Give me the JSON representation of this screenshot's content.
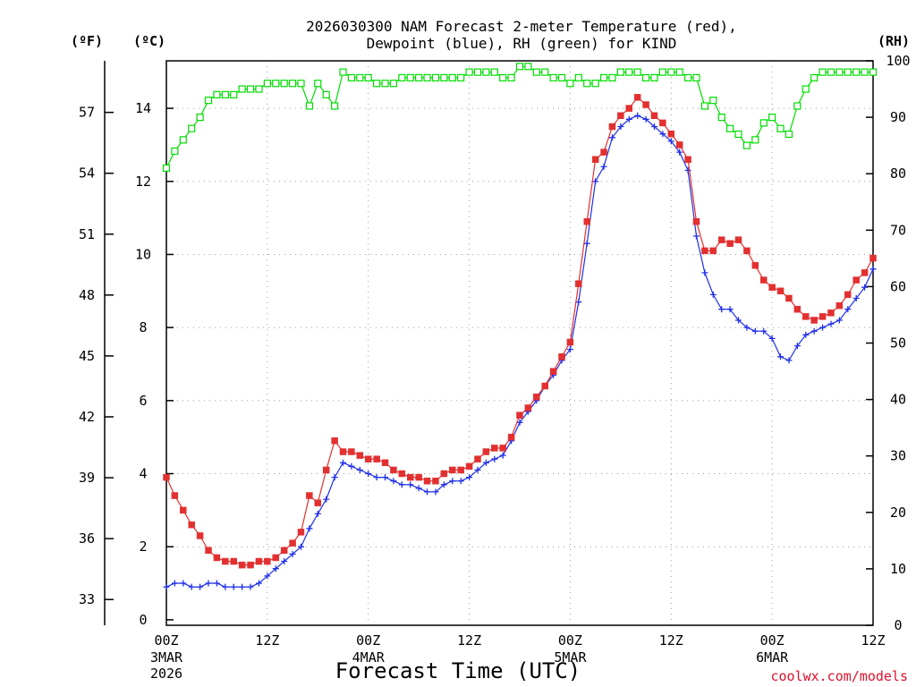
{
  "chart_data": {
    "type": "line",
    "title_line1": "2026030300 NAM Forecast 2-meter Temperature (red),",
    "title_line2": "Dewpoint (blue), RH (green) for KIND",
    "xlabel": "Forecast Time (UTC)",
    "credit": "coolwx.com/models",
    "axis_headers": {
      "fahrenheit": "(ºF)",
      "celsius": "(ºC)",
      "rh": "(RH)"
    },
    "x_ticks": [
      {
        "h": 0,
        "label": "00Z",
        "sub1": "3MAR",
        "sub2": "2026"
      },
      {
        "h": 12,
        "label": "12Z",
        "sub1": "",
        "sub2": ""
      },
      {
        "h": 24,
        "label": "00Z",
        "sub1": "4MAR",
        "sub2": ""
      },
      {
        "h": 36,
        "label": "12Z",
        "sub1": "",
        "sub2": ""
      },
      {
        "h": 48,
        "label": "00Z",
        "sub1": "5MAR",
        "sub2": ""
      },
      {
        "h": 60,
        "label": "12Z",
        "sub1": "",
        "sub2": ""
      },
      {
        "h": 72,
        "label": "00Z",
        "sub1": "6MAR",
        "sub2": ""
      },
      {
        "h": 84,
        "label": "12Z",
        "sub1": "",
        "sub2": ""
      }
    ],
    "xlim": [
      0,
      84
    ],
    "c_ylim": [
      -0.15,
      15.3
    ],
    "c_ticks": [
      "0",
      "2",
      "4",
      "6",
      "8",
      "10",
      "12",
      "14"
    ],
    "f_ticks": [
      "33",
      "36",
      "39",
      "42",
      "45",
      "48",
      "51",
      "54",
      "57"
    ],
    "rh_ylim": [
      0,
      100
    ],
    "rh_ticks": [
      "0",
      "10",
      "20",
      "30",
      "40",
      "50",
      "60",
      "70",
      "80",
      "90",
      "100"
    ],
    "colors": {
      "temperature": "#e23030",
      "dewpoint": "#2030e8",
      "rh": "#00dd00"
    },
    "hours": [
      0,
      1,
      2,
      3,
      4,
      5,
      6,
      7,
      8,
      9,
      10,
      11,
      12,
      13,
      14,
      15,
      16,
      17,
      18,
      19,
      20,
      21,
      22,
      23,
      24,
      25,
      26,
      27,
      28,
      29,
      30,
      31,
      32,
      33,
      34,
      35,
      36,
      37,
      38,
      39,
      40,
      41,
      42,
      43,
      44,
      45,
      46,
      47,
      48,
      49,
      50,
      51,
      52,
      53,
      54,
      55,
      56,
      57,
      58,
      59,
      60,
      61,
      62,
      63,
      64,
      65,
      66,
      67,
      68,
      69,
      70,
      71,
      72,
      73,
      74,
      75,
      76,
      77,
      78,
      79,
      80,
      81,
      82,
      83,
      84
    ],
    "series": [
      {
        "name": "Temperature",
        "unit": "C",
        "values": [
          3.9,
          3.4,
          3.0,
          2.6,
          2.3,
          1.9,
          1.7,
          1.6,
          1.6,
          1.5,
          1.5,
          1.6,
          1.6,
          1.7,
          1.9,
          2.1,
          2.4,
          3.4,
          3.2,
          4.1,
          4.9,
          4.6,
          4.6,
          4.5,
          4.4,
          4.4,
          4.3,
          4.1,
          4.0,
          3.9,
          3.9,
          3.8,
          3.8,
          4.0,
          4.1,
          4.1,
          4.2,
          4.4,
          4.6,
          4.7,
          4.7,
          5.0,
          5.6,
          5.8,
          6.1,
          6.4,
          6.8,
          7.2,
          7.6,
          9.2,
          10.9,
          12.6,
          12.8,
          13.5,
          13.8,
          14.0,
          14.3,
          14.1,
          13.8,
          13.6,
          13.3,
          13.0,
          12.6,
          10.9,
          10.1,
          10.1,
          10.4,
          10.3,
          10.4,
          10.1,
          9.7,
          9.3,
          9.1,
          9.0,
          8.8,
          8.5,
          8.3,
          8.2,
          8.3,
          8.4,
          8.6,
          8.9,
          9.3,
          9.5,
          9.9
        ]
      },
      {
        "name": "Dewpoint",
        "unit": "C",
        "values": [
          0.9,
          1.0,
          1.0,
          0.9,
          0.9,
          1.0,
          1.0,
          0.9,
          0.9,
          0.9,
          0.9,
          1.0,
          1.2,
          1.4,
          1.6,
          1.8,
          2.0,
          2.5,
          2.9,
          3.3,
          3.9,
          4.3,
          4.2,
          4.1,
          4.0,
          3.9,
          3.9,
          3.8,
          3.7,
          3.7,
          3.6,
          3.5,
          3.5,
          3.7,
          3.8,
          3.8,
          3.9,
          4.1,
          4.3,
          4.4,
          4.5,
          4.9,
          5.4,
          5.7,
          6.0,
          6.4,
          6.7,
          7.1,
          7.4,
          8.7,
          10.3,
          12.0,
          12.4,
          13.2,
          13.5,
          13.7,
          13.8,
          13.7,
          13.5,
          13.3,
          13.1,
          12.8,
          12.3,
          10.5,
          9.5,
          8.9,
          8.5,
          8.5,
          8.2,
          8.0,
          7.9,
          7.9,
          7.7,
          7.2,
          7.1,
          7.5,
          7.8,
          7.9,
          8.0,
          8.1,
          8.2,
          8.5,
          8.8,
          9.1,
          9.6
        ]
      },
      {
        "name": "RH",
        "unit": "%",
        "values": [
          81,
          84,
          86,
          88,
          90,
          93,
          94,
          94,
          94,
          95,
          95,
          95,
          96,
          96,
          96,
          96,
          96,
          92,
          96,
          94,
          92,
          98,
          97,
          97,
          97,
          96,
          96,
          96,
          97,
          97,
          97,
          97,
          97,
          97,
          97,
          97,
          98,
          98,
          98,
          98,
          97,
          97,
          99,
          99,
          98,
          98,
          97,
          97,
          96,
          97,
          96,
          96,
          97,
          97,
          98,
          98,
          98,
          97,
          97,
          98,
          98,
          98,
          97,
          97,
          92,
          93,
          90,
          88,
          87,
          85,
          86,
          89,
          90,
          88,
          87,
          92,
          95,
          97,
          98,
          98,
          98,
          98,
          98,
          98,
          98
        ]
      }
    ]
  }
}
